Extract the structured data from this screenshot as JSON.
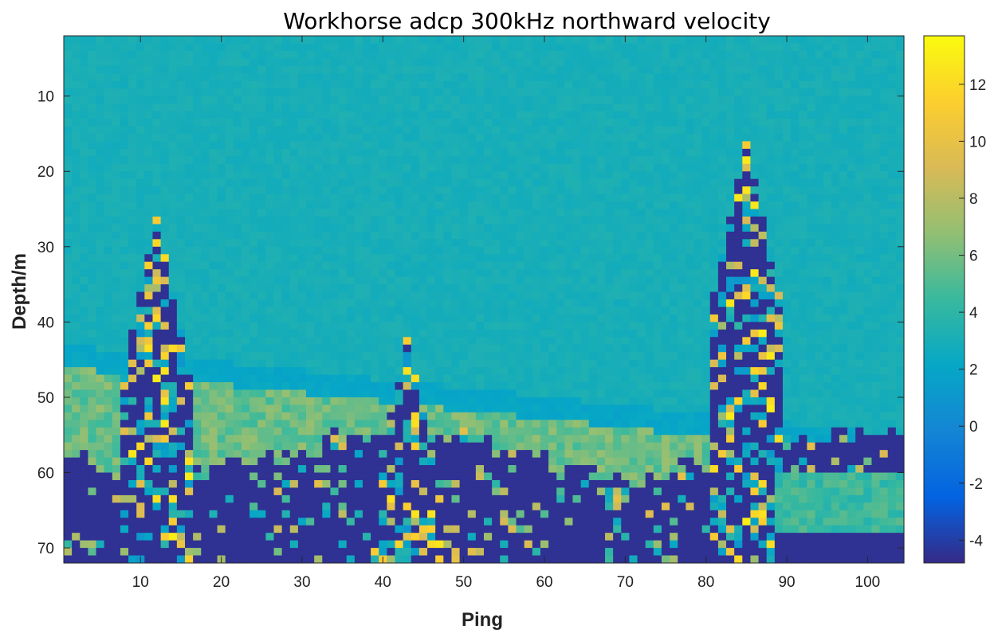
{
  "chart_data": {
    "type": "heatmap",
    "title": "Workhorse adcp 300kHz northward velocity",
    "xlabel": "Ping",
    "ylabel": "Depth/m",
    "xlim": [
      0.5,
      104.5
    ],
    "ylim": [
      2,
      72
    ],
    "y_reversed": true,
    "x_ticks": [
      10,
      20,
      30,
      40,
      50,
      60,
      70,
      80,
      90,
      100
    ],
    "y_ticks": [
      10,
      20,
      30,
      40,
      50,
      60,
      70
    ],
    "colorbar": {
      "colormap": "parula",
      "range": [
        -4.8,
        13.7
      ],
      "ticks": [
        -4,
        -2,
        0,
        2,
        4,
        6,
        8,
        10,
        12
      ]
    },
    "pings": 104,
    "depth_bins": 70,
    "background_velocity": 3.0,
    "bottom_masked_velocity": -4.5,
    "description_features": {
      "near_bottom_band_depth_m": [
        43,
        62
      ],
      "high_velocity_plumes_at_ping": [
        12,
        43,
        85
      ]
    }
  }
}
